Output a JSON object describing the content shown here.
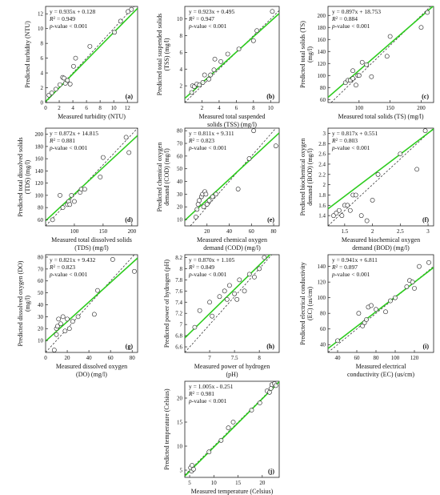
{
  "figure": {
    "fit_color": "#2ecc1f",
    "identity_color": "#222222",
    "point_edge": "#222222",
    "point_fill": "#ffffff"
  },
  "chart_data": [
    {
      "id": "a",
      "type": "scatter",
      "tag": "(a)",
      "xlabel": [
        "Measured turbidity (NTU)"
      ],
      "ylabel": [
        "Predicted turbidity (NTU)"
      ],
      "equation": "y = 0.935x + 0.128",
      "r2_label": "R",
      "r2_value": " = 0.949",
      "pvalue_label": "p",
      "pvalue_text": "-value < 0.001",
      "xlim": [
        0,
        13.5
      ],
      "ylim": [
        0,
        13
      ],
      "xticks": [
        0,
        2,
        4,
        6,
        8,
        10,
        12
      ],
      "yticks": [
        0,
        2,
        4,
        6,
        8,
        10,
        12
      ],
      "fit": {
        "slope": 0.935,
        "intercept": 0.128
      },
      "identity_line": true,
      "grid": false,
      "points": [
        [
          0.5,
          1.0
        ],
        [
          0.9,
          1.3
        ],
        [
          1.5,
          1.8
        ],
        [
          2.1,
          2.4
        ],
        [
          2.5,
          3.4
        ],
        [
          2.7,
          3.3
        ],
        [
          2.9,
          2.6
        ],
        [
          3.2,
          3.0
        ],
        [
          3.6,
          2.5
        ],
        [
          4.1,
          4.9
        ],
        [
          4.4,
          6.0
        ],
        [
          6.5,
          7.6
        ],
        [
          10.1,
          9.5
        ],
        [
          11.0,
          11.0
        ],
        [
          12.1,
          12.3
        ],
        [
          12.6,
          12.6
        ]
      ]
    },
    {
      "id": "b",
      "type": "scatter",
      "tag": "(b)",
      "xlabel": [
        "Measured total suspended",
        "solids (TSS) (mg/l)"
      ],
      "ylabel": [
        "Predicted total suspended solids",
        "(TSS) (mg/l)"
      ],
      "equation": "y = 0.923x + 0.495",
      "r2_label": "R",
      "r2_value": " = 0.947",
      "pvalue_label": "p",
      "pvalue_text": "-value < 0.001",
      "xlim": [
        0,
        11
      ],
      "ylim": [
        0,
        11.5
      ],
      "xticks": [
        2,
        4,
        6,
        8,
        10
      ],
      "yticks": [
        2,
        4,
        6,
        8,
        10
      ],
      "fit": {
        "slope": 0.923,
        "intercept": 0.495
      },
      "identity_line": true,
      "grid": false,
      "points": [
        [
          0.8,
          1.2
        ],
        [
          0.9,
          2.0
        ],
        [
          1.1,
          1.9
        ],
        [
          1.4,
          2.2
        ],
        [
          1.7,
          2.1
        ],
        [
          2.1,
          2.4
        ],
        [
          2.3,
          3.3
        ],
        [
          2.8,
          2.8
        ],
        [
          3.0,
          3.3
        ],
        [
          3.4,
          3.9
        ],
        [
          3.5,
          5.2
        ],
        [
          4.2,
          4.9
        ],
        [
          5.0,
          5.8
        ],
        [
          6.3,
          6.4
        ],
        [
          8.0,
          7.4
        ],
        [
          8.4,
          8.6
        ],
        [
          10.2,
          10.9
        ]
      ]
    },
    {
      "id": "c",
      "type": "scatter",
      "tag": "(c)",
      "xlabel": [
        "Measured total solids (TS) (mg/l)"
      ],
      "ylabel": [
        "Predicted total solids (TS)",
        "(mg/l)"
      ],
      "equation": "y = 0.897x + 18.753",
      "r2_label": "R",
      "r2_value": " = 0.884",
      "pvalue_label": "p",
      "pvalue_text": "-value < 0.001",
      "xlim": [
        50,
        220
      ],
      "ylim": [
        55,
        215
      ],
      "xticks": [
        100,
        150,
        200
      ],
      "yticks": [
        60,
        80,
        100,
        120,
        140,
        160,
        180,
        200
      ],
      "fit": {
        "slope": 0.897,
        "intercept": 18.753
      },
      "identity_line": true,
      "grid": false,
      "points": [
        [
          78,
          88
        ],
        [
          82,
          92
        ],
        [
          86,
          92
        ],
        [
          90,
          95
        ],
        [
          90,
          108
        ],
        [
          95,
          84
        ],
        [
          98,
          100
        ],
        [
          100,
          100
        ],
        [
          105,
          122
        ],
        [
          112,
          118
        ],
        [
          120,
          98
        ],
        [
          145,
          132
        ],
        [
          150,
          165
        ],
        [
          200,
          180
        ],
        [
          210,
          205
        ]
      ]
    },
    {
      "id": "d",
      "type": "scatter",
      "tag": "(d)",
      "xlabel": [
        "Measured total dissolved solids",
        "(TDS) (mg/l)"
      ],
      "ylabel": [
        "Predicted total dissolved solids",
        "(TDS) (mg/l)"
      ],
      "equation": "y = 0.872x + 14.815",
      "r2_label": "R",
      "r2_value": " = 0.881",
      "pvalue_label": "p",
      "pvalue_text": "-value < 0.001",
      "xlim": [
        50,
        210
      ],
      "ylim": [
        50,
        210
      ],
      "xticks": [
        100,
        150,
        200
      ],
      "yticks": [
        60,
        80,
        100,
        120,
        140,
        160,
        180,
        200
      ],
      "fit": {
        "slope": 0.872,
        "intercept": 14.815
      },
      "identity_line": true,
      "grid": false,
      "points": [
        [
          62,
          60
        ],
        [
          75,
          100
        ],
        [
          80,
          80
        ],
        [
          88,
          85
        ],
        [
          90,
          90
        ],
        [
          92,
          85
        ],
        [
          95,
          100
        ],
        [
          100,
          90
        ],
        [
          110,
          105
        ],
        [
          112,
          110
        ],
        [
          118,
          110
        ],
        [
          145,
          130
        ],
        [
          150,
          162
        ],
        [
          190,
          195
        ],
        [
          195,
          170
        ]
      ]
    },
    {
      "id": "e",
      "type": "scatter",
      "tag": "(e)",
      "xlabel": [
        "Measured chemical oxygen",
        "demand (COD) (mg/l)"
      ],
      "ylabel": [
        "Predicted chemical oxygen",
        "demand (COD) (mg/l)"
      ],
      "equation": "y = 0.811x + 9.311",
      "r2_label": "R",
      "r2_value": " = 0.823",
      "pvalue_label": "p",
      "pvalue_text": "-value < 0.001",
      "xlim": [
        0,
        85
      ],
      "ylim": [
        5,
        82
      ],
      "xticks": [
        20,
        40,
        60,
        80
      ],
      "yticks": [
        10,
        20,
        30,
        40,
        50,
        60,
        70,
        80
      ],
      "fit": {
        "slope": 0.811,
        "intercept": 9.311
      },
      "identity_line": true,
      "grid": false,
      "points": [
        [
          10,
          12
        ],
        [
          11,
          18
        ],
        [
          12,
          22
        ],
        [
          13,
          25
        ],
        [
          15,
          28
        ],
        [
          16,
          30
        ],
        [
          17,
          20
        ],
        [
          18,
          32
        ],
        [
          19,
          30
        ],
        [
          20,
          22
        ],
        [
          22,
          25
        ],
        [
          25,
          28
        ],
        [
          28,
          30
        ],
        [
          48,
          34
        ],
        [
          58,
          58
        ],
        [
          62,
          80
        ],
        [
          82,
          68
        ]
      ]
    },
    {
      "id": "f",
      "type": "scatter",
      "tag": "(f)",
      "xlabel": [
        "Measured biochemical oxygen",
        "demand (BOD) (mg/l)"
      ],
      "ylabel": [
        "Predicted biochemical oxygen",
        "demand (BOD) (mg/l)"
      ],
      "equation": "y = 0.817x + 0.551",
      "r2_label": "R",
      "r2_value": " = 0.803",
      "pvalue_label": "p",
      "pvalue_text": "-value < 0.001",
      "xlim": [
        1.2,
        3.1
      ],
      "ylim": [
        1.2,
        3.1
      ],
      "xticks": [
        1.5,
        2,
        2.5,
        3
      ],
      "yticks": [
        1.4,
        1.6,
        1.8,
        2,
        2.2,
        2.4,
        2.6,
        2.8,
        3
      ],
      "fit": {
        "slope": 0.817,
        "intercept": 0.551
      },
      "identity_line": true,
      "grid": false,
      "points": [
        [
          1.3,
          1.4
        ],
        [
          1.35,
          1.45
        ],
        [
          1.4,
          1.5
        ],
        [
          1.45,
          1.4
        ],
        [
          1.5,
          1.6
        ],
        [
          1.55,
          1.6
        ],
        [
          1.6,
          1.5
        ],
        [
          1.65,
          1.8
        ],
        [
          1.7,
          1.8
        ],
        [
          1.8,
          1.4
        ],
        [
          1.9,
          1.3
        ],
        [
          2.0,
          1.7
        ],
        [
          2.1,
          2.2
        ],
        [
          2.5,
          2.6
        ],
        [
          2.8,
          2.3
        ],
        [
          2.95,
          3.05
        ]
      ]
    },
    {
      "id": "g",
      "type": "scatter",
      "tag": "(g)",
      "xlabel": [
        "Measured dissolved oxygen",
        "(DO) (mg/l)"
      ],
      "ylabel": [
        "Predicted dissolved oxygen (DO)",
        "(mg/l)"
      ],
      "equation": "y = 0.821x + 9.432",
      "r2_label": "R",
      "r2_value": " = 0.823",
      "pvalue_label": "p",
      "pvalue_text": "-value < 0.001",
      "xlim": [
        0,
        85
      ],
      "ylim": [
        0,
        82
      ],
      "xticks": [
        0,
        20,
        40,
        60,
        80
      ],
      "yticks": [
        10,
        20,
        30,
        40,
        50,
        60,
        70,
        80
      ],
      "fit": {
        "slope": 0.821,
        "intercept": 9.432
      },
      "identity_line": true,
      "grid": false,
      "points": [
        [
          8,
          2
        ],
        [
          10,
          15
        ],
        [
          10,
          20
        ],
        [
          11,
          22
        ],
        [
          12,
          28
        ],
        [
          14,
          24
        ],
        [
          16,
          30
        ],
        [
          18,
          18
        ],
        [
          20,
          28
        ],
        [
          22,
          20
        ],
        [
          25,
          26
        ],
        [
          30,
          30
        ],
        [
          45,
          32
        ],
        [
          48,
          52
        ],
        [
          62,
          78
        ],
        [
          82,
          68
        ]
      ]
    },
    {
      "id": "h",
      "type": "scatter",
      "tag": "(h)",
      "xlabel": [
        "Measured power of hydrogen",
        "(pH)"
      ],
      "ylabel": [
        "Predicted power of hydrogen (pH)",
        ""
      ],
      "equation": "y = 0.870x + 1.105",
      "r2_label": "R",
      "r2_value": " = 0.849",
      "pvalue_label": "p",
      "pvalue_text": "-value < 0.001",
      "xlim": [
        6.5,
        8.4
      ],
      "ylim": [
        6.5,
        8.25
      ],
      "xticks": [
        7,
        7.5,
        8
      ],
      "yticks": [
        6.6,
        6.8,
        7,
        7.2,
        7.4,
        7.6,
        7.8,
        8,
        8.2
      ],
      "fit": {
        "slope": 0.87,
        "intercept": 1.105
      },
      "identity_line": true,
      "grid": false,
      "points": [
        [
          6.7,
          6.95
        ],
        [
          6.8,
          7.25
        ],
        [
          7.0,
          7.4
        ],
        [
          7.05,
          7.15
        ],
        [
          7.2,
          7.5
        ],
        [
          7.3,
          7.6
        ],
        [
          7.35,
          7.45
        ],
        [
          7.4,
          7.7
        ],
        [
          7.5,
          7.55
        ],
        [
          7.55,
          7.45
        ],
        [
          7.6,
          7.8
        ],
        [
          7.7,
          7.6
        ],
        [
          7.8,
          7.9
        ],
        [
          7.9,
          7.85
        ],
        [
          8.0,
          8.0
        ],
        [
          8.1,
          8.2
        ]
      ]
    },
    {
      "id": "i",
      "type": "scatter",
      "tag": "(i)",
      "xlabel": [
        "Measured electrical",
        "conductivity (EC) (us/cm)"
      ],
      "ylabel": [
        "Predicted electrical conductivity",
        "(EC) (us/cm)"
      ],
      "equation": "y = 0.941x + 6.811",
      "r2_label": "R",
      "r2_value": " = 0.897",
      "pvalue_label": "p",
      "pvalue_text": "-value < 0.001",
      "xlim": [
        30,
        140
      ],
      "ylim": [
        30,
        155
      ],
      "xticks": [
        40,
        60,
        80,
        100,
        120
      ],
      "yticks": [
        40,
        60,
        80,
        100,
        120,
        140
      ],
      "fit": {
        "slope": 0.941,
        "intercept": 6.811
      },
      "identity_line": true,
      "grid": false,
      "points": [
        [
          40,
          45
        ],
        [
          62,
          80
        ],
        [
          66,
          64
        ],
        [
          68,
          68
        ],
        [
          70,
          72
        ],
        [
          72,
          88
        ],
        [
          75,
          90
        ],
        [
          80,
          85
        ],
        [
          90,
          82
        ],
        [
          95,
          96
        ],
        [
          100,
          100
        ],
        [
          112,
          114
        ],
        [
          115,
          122
        ],
        [
          118,
          120
        ],
        [
          120,
          112
        ],
        [
          125,
          140
        ],
        [
          135,
          145
        ]
      ]
    },
    {
      "id": "j",
      "type": "scatter",
      "tag": "(j)",
      "xlabel": [
        "Measured temperature (Celsius)"
      ],
      "ylabel": [
        "Predicted temperature (Celsius)",
        ""
      ],
      "equation": "y = 1.005x - 0.251",
      "r2_label": "R",
      "r2_value": " = 0.981",
      "pvalue_label": "p",
      "pvalue_text": "-value < 0.001",
      "xlim": [
        4,
        23.5
      ],
      "ylim": [
        3.5,
        23.5
      ],
      "xticks": [
        5,
        10,
        15,
        20
      ],
      "yticks": [
        5,
        10,
        15,
        20
      ],
      "fit": {
        "slope": 1.005,
        "intercept": -0.251
      },
      "identity_line": true,
      "grid": false,
      "points": [
        [
          5.2,
          5.5
        ],
        [
          5.4,
          4.8
        ],
        [
          5.5,
          6.0
        ],
        [
          5.8,
          5.2
        ],
        [
          9.0,
          8.8
        ],
        [
          11.5,
          11.2
        ],
        [
          13.0,
          13.8
        ],
        [
          14.0,
          15.0
        ],
        [
          17.8,
          17.5
        ],
        [
          19.5,
          19.0
        ],
        [
          21.0,
          21.5
        ],
        [
          21.5,
          21.2
        ],
        [
          21.8,
          22.0
        ],
        [
          22.0,
          22.8
        ],
        [
          22.5,
          23.0
        ],
        [
          22.8,
          22.6
        ]
      ]
    }
  ]
}
